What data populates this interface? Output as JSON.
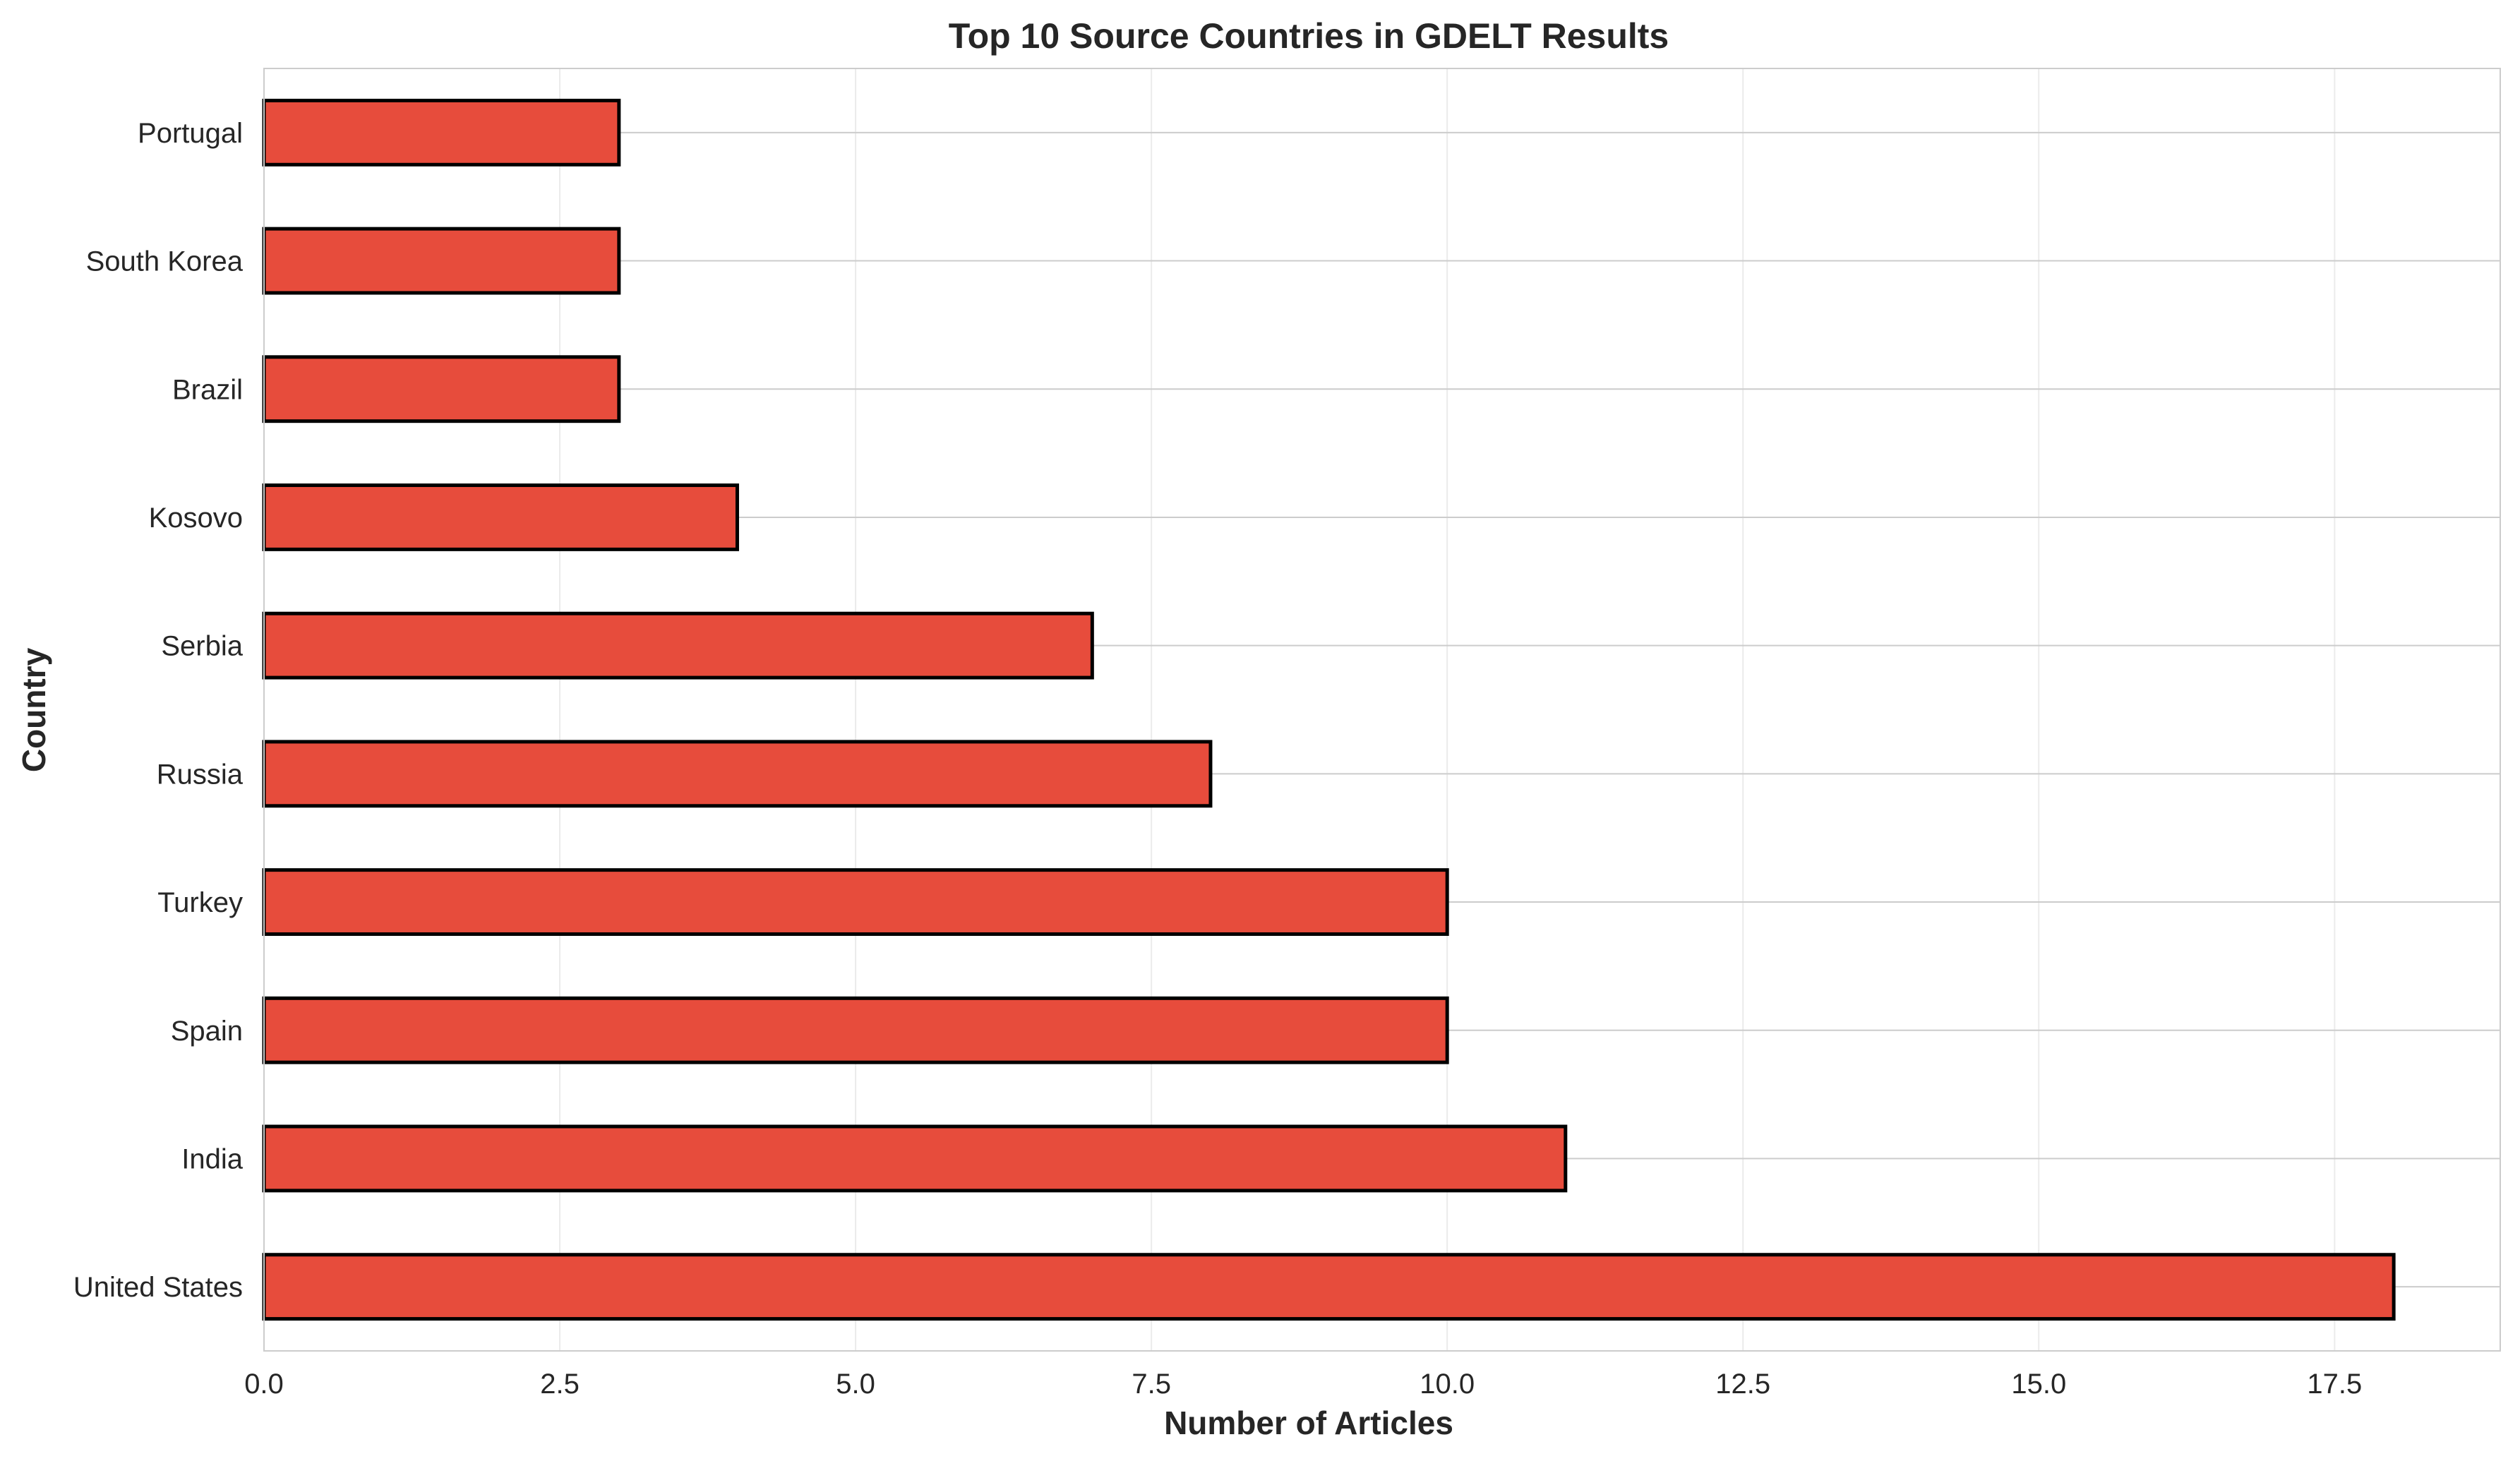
{
  "chart_data": {
    "type": "bar",
    "orientation": "horizontal",
    "title": "Top 10 Source Countries in GDELT Results",
    "xlabel": "Number of Articles",
    "ylabel": "Country",
    "categories": [
      "United States",
      "India",
      "Spain",
      "Turkey",
      "Russia",
      "Serbia",
      "Kosovo",
      "Brazil",
      "South Korea",
      "Portugal"
    ],
    "values": [
      18,
      11,
      10,
      10,
      8,
      7,
      4,
      3,
      3,
      3
    ],
    "xlim": [
      0,
      18.9
    ],
    "xticks": [
      "0.0",
      "2.5",
      "5.0",
      "7.5",
      "10.0",
      "12.5",
      "15.0",
      "17.5"
    ],
    "grid": true,
    "bar_color": "#e74c3c",
    "edge_color": "#000000"
  }
}
